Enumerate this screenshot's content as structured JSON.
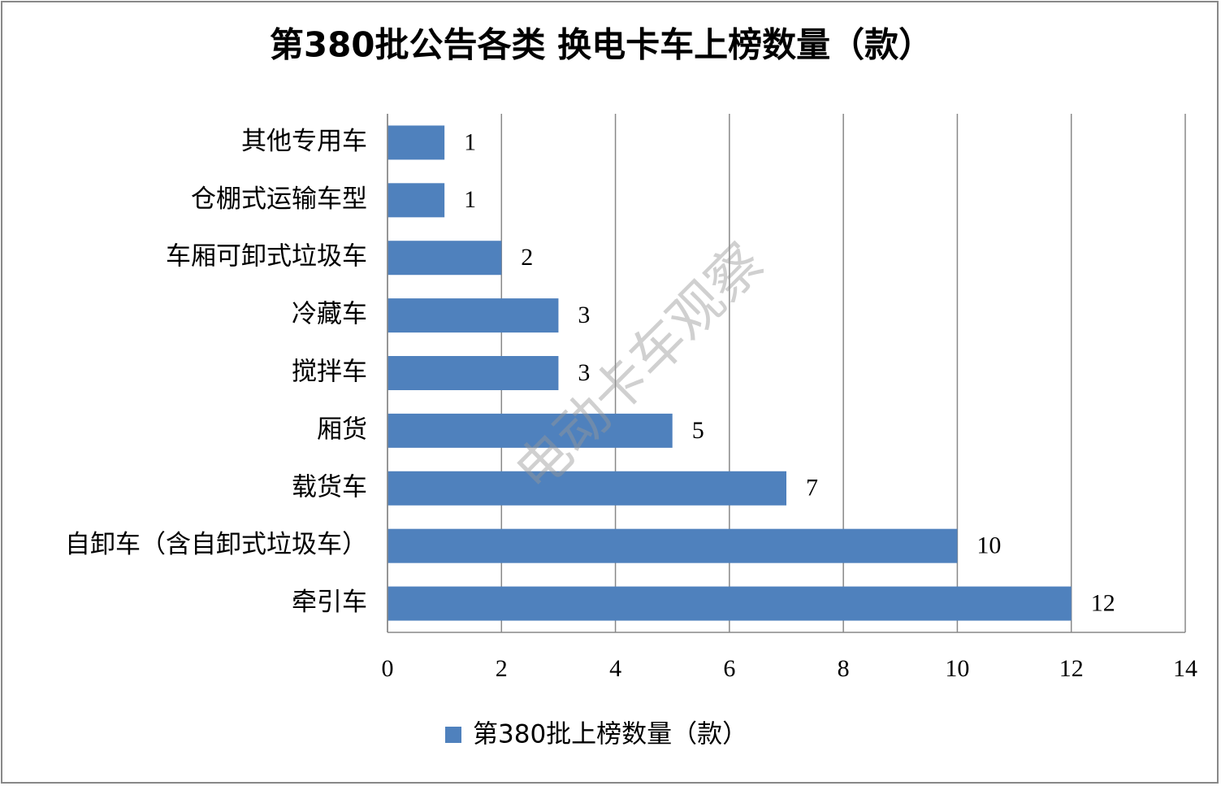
{
  "chart_data": {
    "type": "bar",
    "orientation": "horizontal",
    "title": "第380批公告各类 换电卡车上榜数量（款）",
    "categories": [
      "其他专用车",
      "仓棚式运输车型",
      "车厢可卸式垃圾车",
      "冷藏车",
      "搅拌车",
      "厢货",
      "载货车",
      "自卸车（含自卸式垃圾车）",
      "牵引车"
    ],
    "series": [
      {
        "name": "第380批上榜数量（款）",
        "color": "#4f81bd",
        "values": [
          1,
          1,
          2,
          3,
          3,
          5,
          7,
          10,
          12
        ]
      }
    ],
    "xlim": [
      0,
      14
    ],
    "xticks": [
      0,
      2,
      4,
      6,
      8,
      10,
      12,
      14
    ],
    "grid": true,
    "legend": "bottom",
    "watermark": "电动卡车观察"
  }
}
